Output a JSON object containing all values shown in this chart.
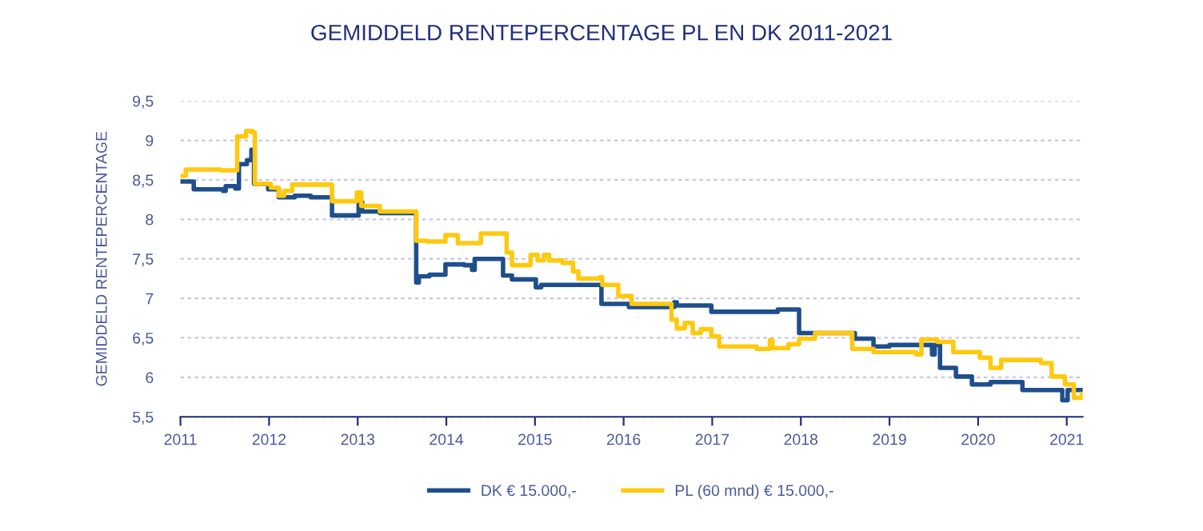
{
  "chart_data": {
    "type": "step",
    "title": "GEMIDDELD RENTEPERCENTAGE PL EN DK 2011-2021",
    "ylabel": "GEMIDDELD RENTEPERCENTAGE",
    "xlim": [
      2011,
      2021.18
    ],
    "xticks": [
      2011,
      2012,
      2013,
      2014,
      2015,
      2016,
      2017,
      2018,
      2019,
      2020,
      2021
    ],
    "ylim": [
      5.5,
      9.5
    ],
    "yticks": [
      {
        "value": 5.5,
        "label": "5,5"
      },
      6,
      {
        "value": 6.5,
        "label": "6,5"
      },
      7,
      {
        "value": 7.5,
        "label": "7,5"
      },
      8,
      {
        "value": 8.5,
        "label": "8,5"
      },
      9,
      {
        "value": 9.5,
        "label": "9,5"
      }
    ],
    "grid": "y",
    "legend": "bottom",
    "series": [
      {
        "name": "DK € 15.000,-",
        "color": "#1f4e8c",
        "x": [
          2011.0,
          2011.15,
          2011.48,
          2011.51,
          2011.62,
          2011.66,
          2011.75,
          2011.8,
          2011.83,
          2011.99,
          2012.11,
          2012.29,
          2012.47,
          2012.71,
          2013.01,
          2013.05,
          2013.25,
          2013.66,
          2013.69,
          2013.81,
          2013.99,
          2014.2,
          2014.29,
          2014.32,
          2014.64,
          2014.74,
          2015.01,
          2015.07,
          2015.75,
          2016.06,
          2016.57,
          2016.6,
          2016.99,
          2017.74,
          2017.98,
          2018.61,
          2018.82,
          2019.0,
          2019.48,
          2019.51,
          2019.57,
          2019.75,
          2019.93,
          2020.14,
          2020.5,
          2020.95,
          2021.01,
          2021.17
        ],
        "values": [
          8.48,
          8.38,
          8.36,
          8.42,
          8.39,
          8.7,
          8.75,
          8.88,
          8.45,
          8.38,
          8.28,
          8.3,
          8.28,
          8.05,
          8.22,
          8.1,
          8.08,
          7.2,
          7.28,
          7.3,
          7.43,
          7.42,
          7.36,
          7.5,
          7.29,
          7.24,
          7.14,
          7.17,
          6.93,
          6.89,
          6.95,
          6.91,
          6.83,
          6.86,
          6.56,
          6.49,
          6.39,
          6.41,
          6.29,
          6.41,
          6.12,
          6.01,
          5.91,
          5.94,
          5.84,
          5.71,
          5.84,
          5.84
        ]
      },
      {
        "name": "PL (60 mnd) € 15.000,-",
        "color": "#ffc90e",
        "x": [
          2011.0,
          2011.06,
          2011.45,
          2011.64,
          2011.74,
          2011.81,
          2011.84,
          2012.02,
          2012.11,
          2012.17,
          2012.26,
          2012.71,
          2012.99,
          2013.04,
          2013.25,
          2013.66,
          2013.78,
          2013.99,
          2014.13,
          2014.39,
          2014.68,
          2014.74,
          2014.95,
          2015.03,
          2015.1,
          2015.16,
          2015.31,
          2015.43,
          2015.49,
          2015.73,
          2015.76,
          2015.94,
          2016.09,
          2016.54,
          2016.6,
          2016.69,
          2016.78,
          2016.87,
          2016.99,
          2017.08,
          2017.5,
          2017.65,
          2017.68,
          2017.86,
          2017.98,
          2018.16,
          2018.58,
          2018.82,
          2019.3,
          2019.36,
          2019.54,
          2019.72,
          2020.02,
          2020.14,
          2020.26,
          2020.71,
          2020.83,
          2020.98,
          2021.08,
          2021.17
        ],
        "values": [
          8.55,
          8.63,
          8.62,
          9.05,
          9.12,
          9.1,
          8.45,
          8.4,
          8.3,
          8.36,
          8.44,
          8.23,
          8.34,
          8.17,
          8.1,
          7.73,
          7.72,
          7.8,
          7.7,
          7.82,
          7.58,
          7.42,
          7.55,
          7.48,
          7.55,
          7.48,
          7.45,
          7.34,
          7.25,
          7.27,
          7.17,
          7.03,
          6.93,
          6.73,
          6.62,
          6.69,
          6.56,
          6.61,
          6.52,
          6.39,
          6.36,
          6.47,
          6.37,
          6.42,
          6.49,
          6.56,
          6.36,
          6.32,
          6.29,
          6.48,
          6.45,
          6.32,
          6.25,
          6.12,
          6.22,
          6.18,
          6.01,
          5.91,
          5.74,
          5.79
        ]
      }
    ]
  }
}
